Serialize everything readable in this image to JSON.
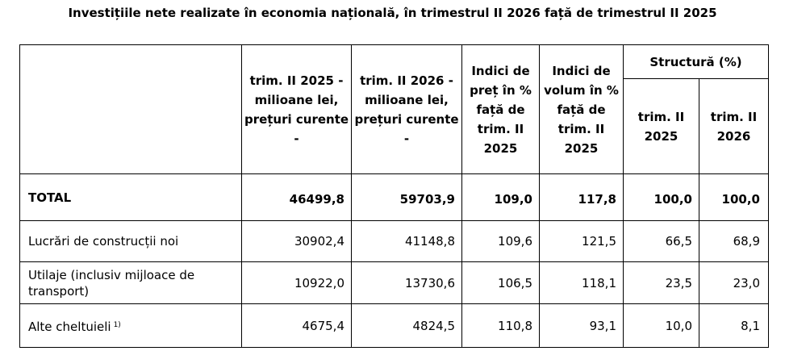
{
  "title": "Investițiile nete realizate în economia națională, în trimestrul II 2026 față de trimestrul II 2025",
  "table": {
    "headers": {
      "col1": "trim. II 2025 - milioane lei, prețuri curente -",
      "col2": "trim. II 2026 - milioane lei, prețuri curente -",
      "col3": "Indici de preț în % față de trim. II 2025",
      "col4": "Indici de volum în % față de trim. II 2025",
      "group": "Structură (%)",
      "col5": "trim. II 2025",
      "col6": "trim. II 2026"
    },
    "rows": [
      {
        "label": "TOTAL",
        "footnote_mark": "",
        "values": [
          "46499,8",
          "59703,9",
          "109,0",
          "117,8",
          "100,0",
          "100,0"
        ]
      },
      {
        "label": "Lucrări de construcții noi",
        "footnote_mark": "",
        "values": [
          "30902,4",
          "41148,8",
          "109,6",
          "121,5",
          "66,5",
          "68,9"
        ]
      },
      {
        "label": "Utilaje (inclusiv mijloace de transport)",
        "footnote_mark": "",
        "values": [
          "10922,0",
          "13730,6",
          "106,5",
          "118,1",
          "23,5",
          "23,0"
        ]
      },
      {
        "label": "Alte cheltuieli",
        "footnote_mark": "1)",
        "values": [
          "4675,4",
          "4824,5",
          "110,8",
          "93,1",
          "10,0",
          "8,1"
        ]
      }
    ]
  }
}
